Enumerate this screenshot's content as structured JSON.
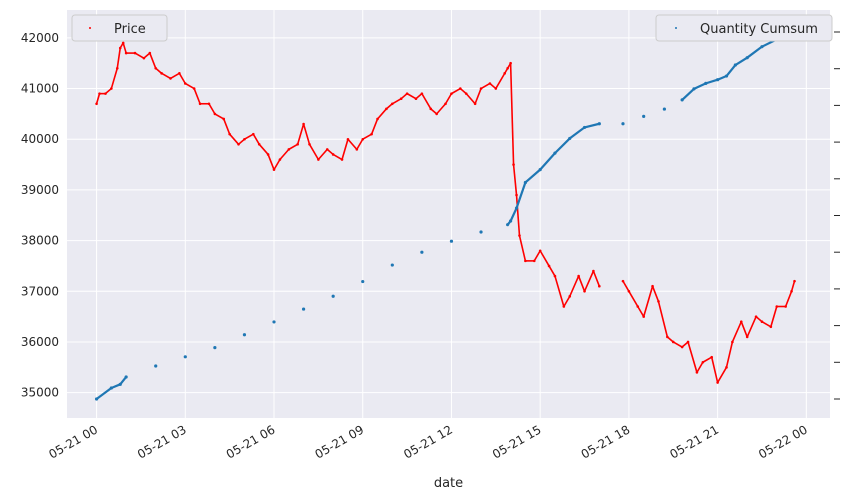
{
  "chart_data": {
    "type": "line",
    "xlabel": "date",
    "x_tick_labels": [
      "05-21 00",
      "05-21 03",
      "05-21 06",
      "05-21 09",
      "05-21 12",
      "05-21 15",
      "05-21 18",
      "05-21 21",
      "05-22 00"
    ],
    "x_tick_hours": [
      0,
      3,
      6,
      9,
      12,
      15,
      18,
      21,
      24
    ],
    "xlim_hours": [
      -1.0,
      24.8
    ],
    "y_left": {
      "ylim": [
        34500,
        42550
      ],
      "ticks": [
        35000,
        36000,
        37000,
        38000,
        39000,
        40000,
        41000,
        42000
      ],
      "tick_labels": [
        "35000",
        "36000",
        "37000",
        "38000",
        "39000",
        "40000",
        "41000",
        "42000"
      ]
    },
    "y_right": {
      "ylim": [
        0,
        1
      ],
      "ticks": [
        0.0,
        0.1,
        0.2,
        0.3,
        0.4,
        0.5,
        0.6,
        0.7,
        0.8,
        0.9,
        1.0
      ],
      "tick_labels": []
    },
    "grid": true,
    "legends": [
      {
        "name": "Price",
        "placement": "top-left",
        "color": "#ff0000"
      },
      {
        "name": "Quantity Cumsum",
        "placement": "top-right",
        "color": "#1f77b4"
      }
    ],
    "series": [
      {
        "name": "Price",
        "axis": "left",
        "color": "#ff0000",
        "style": "markers",
        "x_hours": [
          0.0,
          0.1,
          0.3,
          0.5,
          0.7,
          0.8,
          0.9,
          1.0,
          1.3,
          1.6,
          1.8,
          2.0,
          2.2,
          2.5,
          2.8,
          3.0,
          3.3,
          3.5,
          3.8,
          4.0,
          4.3,
          4.5,
          4.8,
          5.0,
          5.3,
          5.5,
          5.8,
          6.0,
          6.2,
          6.5,
          6.8,
          7.0,
          7.2,
          7.5,
          7.8,
          8.0,
          8.3,
          8.5,
          8.8,
          9.0,
          9.3,
          9.5,
          9.8,
          10.0,
          10.3,
          10.5,
          10.8,
          11.0,
          11.3,
          11.5,
          11.8,
          12.0,
          12.3,
          12.5,
          12.8,
          13.0,
          13.3,
          13.5,
          13.8,
          13.9,
          14.0,
          14.1,
          14.2,
          14.3,
          14.5,
          14.8,
          15.0,
          15.3,
          15.5,
          15.8,
          16.0,
          16.3,
          16.5,
          16.8,
          17.0,
          17.8,
          18.0,
          18.3,
          18.5,
          18.8,
          19.0,
          19.3,
          19.5,
          19.8,
          20.0,
          20.3,
          20.5,
          20.8,
          21.0,
          21.3,
          21.5,
          21.8,
          22.0,
          22.3,
          22.5,
          22.8,
          23.0,
          23.3,
          23.5,
          23.6
        ],
        "y": [
          40700,
          40900,
          40900,
          41000,
          41400,
          41800,
          41900,
          41700,
          41700,
          41600,
          41700,
          41400,
          41300,
          41200,
          41300,
          41100,
          41000,
          40700,
          40700,
          40500,
          40400,
          40100,
          39900,
          40000,
          40100,
          39900,
          39700,
          39400,
          39600,
          39800,
          39900,
          40300,
          39900,
          39600,
          39800,
          39700,
          39600,
          40000,
          39800,
          40000,
          40100,
          40400,
          40600,
          40700,
          40800,
          40900,
          40800,
          40900,
          40600,
          40500,
          40700,
          40900,
          41000,
          40900,
          40700,
          41000,
          41100,
          41000,
          41300,
          41400,
          41500,
          39500,
          38900,
          38100,
          37600,
          37600,
          37800,
          37500,
          37300,
          36700,
          36900,
          37300,
          37000,
          37400,
          37100,
          37200,
          37000,
          36700,
          36500,
          37100,
          36800,
          36100,
          36000,
          35900,
          36000,
          35400,
          35600,
          35700,
          35200,
          35500,
          36000,
          36400,
          36100,
          36500,
          36400,
          36300,
          36700,
          36700,
          37000,
          37200
        ]
      },
      {
        "name": "Quantity Cumsum",
        "axis": "right",
        "color": "#1f77b4",
        "style": "markers",
        "x_hours": [
          0.0,
          0.5,
          0.8,
          1.0,
          2.0,
          3.0,
          4.0,
          5.0,
          6.0,
          7.0,
          8.0,
          9.0,
          10.0,
          11.0,
          12.0,
          13.0,
          13.9,
          14.0,
          14.2,
          14.5,
          15.0,
          15.5,
          16.0,
          16.5,
          17.0,
          17.8,
          18.5,
          19.2,
          19.8,
          20.2,
          20.6,
          21.0,
          21.3,
          21.6,
          22.0,
          22.5,
          23.0,
          23.3,
          23.6
        ],
        "y": [
          0.0,
          0.03,
          0.04,
          0.06,
          0.09,
          0.115,
          0.14,
          0.175,
          0.21,
          0.245,
          0.28,
          0.32,
          0.365,
          0.4,
          0.43,
          0.455,
          0.475,
          0.485,
          0.52,
          0.59,
          0.625,
          0.67,
          0.71,
          0.74,
          0.75,
          0.75,
          0.77,
          0.79,
          0.815,
          0.845,
          0.86,
          0.87,
          0.88,
          0.91,
          0.93,
          0.96,
          0.98,
          0.99,
          1.0
        ]
      }
    ]
  }
}
